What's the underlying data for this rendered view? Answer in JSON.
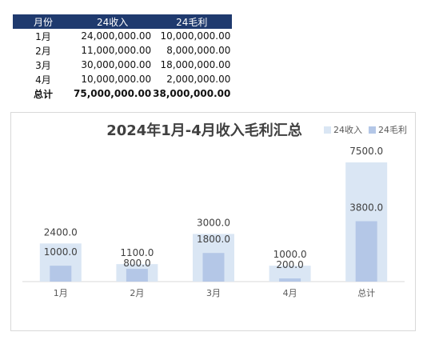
{
  "table": {
    "headers": [
      "月份",
      "24收入",
      "24毛利"
    ],
    "rows": [
      [
        "1月",
        "24,000,000.00",
        "10,000,000.00"
      ],
      [
        "2月",
        "11,000,000.00",
        "8,000,000.00"
      ],
      [
        "3月",
        "30,000,000.00",
        "18,000,000.00"
      ],
      [
        "4月",
        "10,000,000.00",
        "2,000,000.00"
      ]
    ],
    "total": [
      "总计",
      "75,000,000.00",
      "38,000,000.00"
    ]
  },
  "colors": {
    "header_bg": "#1f3a6e",
    "revenue": "#dae6f4",
    "profit": "#b4c7e7"
  },
  "chart_data": {
    "type": "bar",
    "title": "2024年1月-4月收入毛利汇总",
    "categories": [
      "1月",
      "2月",
      "3月",
      "4月",
      "总计"
    ],
    "series": [
      {
        "name": "24收入",
        "values": [
          2400.0,
          1100.0,
          3000.0,
          1000.0,
          7500.0
        ],
        "labels": [
          "2400.0",
          "1100.0",
          "3000.0",
          "1000.0",
          "7500.0"
        ]
      },
      {
        "name": "24毛利",
        "values": [
          1000.0,
          800.0,
          1800.0,
          200.0,
          3800.0
        ],
        "labels": [
          "1000.0",
          "800.0",
          "1800.0",
          "200.0",
          "3800.0"
        ]
      }
    ],
    "ylim": [
      0,
      8000
    ],
    "grid": false,
    "legend_position": "top-right",
    "overlap": true
  }
}
